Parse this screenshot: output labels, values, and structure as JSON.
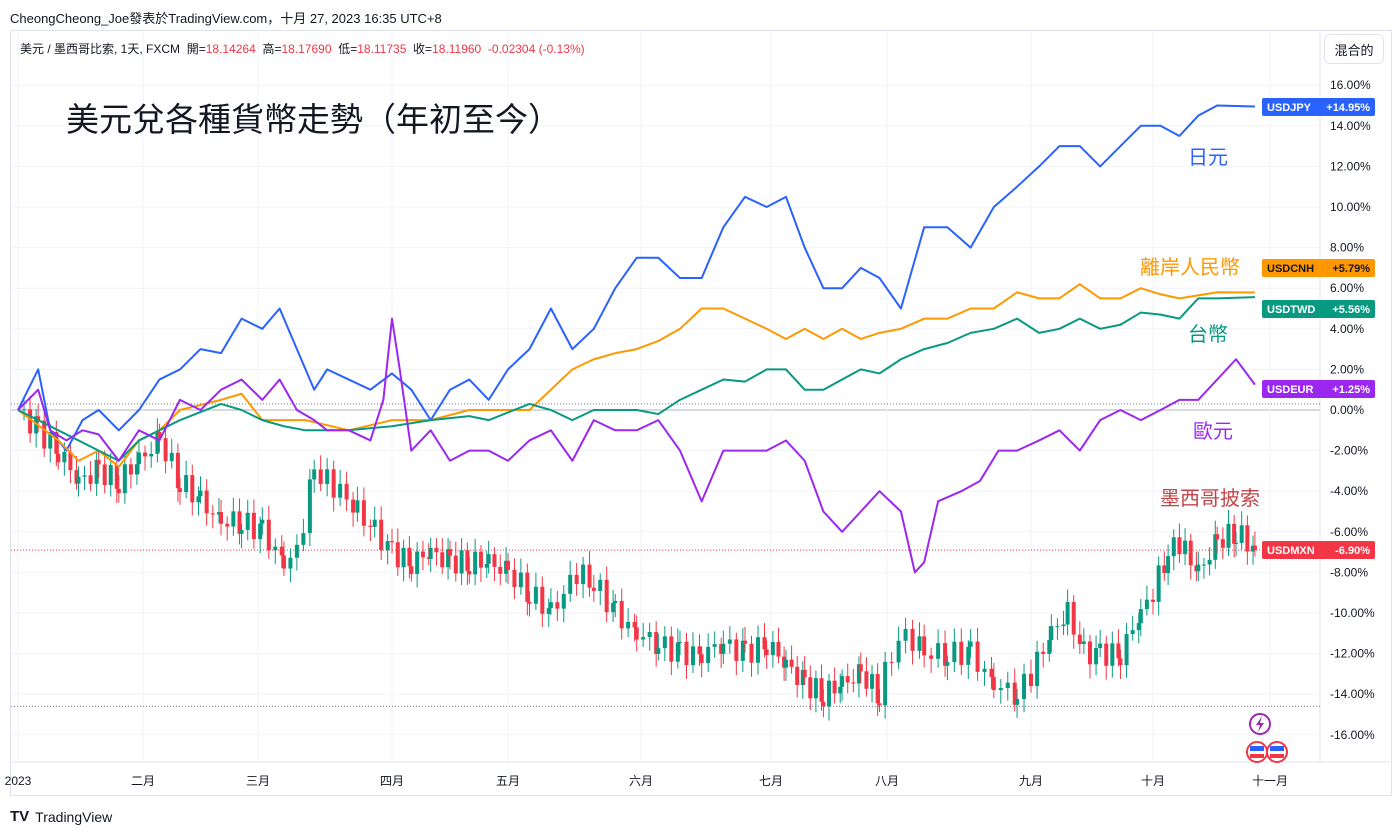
{
  "header": {
    "published": "CheongCheong_Joe發表於TradingView.com，十月 27, 2023 16:35 UTC+8"
  },
  "legend": {
    "symbol": "美元 / 墨西哥比索, 1天, FXCM",
    "open_label": "開=",
    "open": "18.14264",
    "high_label": "高=",
    "high": "18.17690",
    "low_label": "低=",
    "low": "18.11735",
    "close_label": "收=",
    "close": "18.11960",
    "change": "-0.02304 (-0.13%)"
  },
  "scale_button": "混合的",
  "footer": {
    "brand": "TradingView"
  },
  "chart_data": {
    "type": "line",
    "title": "美元兌各種貨幣走勢（年初至今）",
    "ylabel": "%",
    "ylim": [
      -17,
      17
    ],
    "yticks": [
      16,
      14,
      12,
      10,
      8,
      6,
      4,
      2,
      0,
      -2,
      -4,
      -6,
      -8,
      -10,
      -12,
      -14,
      -16
    ],
    "ytick_labels": [
      "16.00%",
      "14.00%",
      "12.00%",
      "10.00%",
      "8.00%",
      "6.00%",
      "4.00%",
      "2.00%",
      "0.00%",
      "-2.00%",
      "-4.00%",
      "-6.00%",
      "-8.00%",
      "-10.00%",
      "-12.00%",
      "-14.00%",
      "-16.00%"
    ],
    "xticks": [
      {
        "day": 0,
        "label": "2023"
      },
      {
        "day": 31,
        "label": "二月"
      },
      {
        "day": 59,
        "label": "三月"
      },
      {
        "day": 90,
        "label": "四月"
      },
      {
        "day": 120,
        "label": "五月"
      },
      {
        "day": 151,
        "label": "六月"
      },
      {
        "day": 181,
        "label": "七月"
      },
      {
        "day": 212,
        "label": "八月"
      },
      {
        "day": 243,
        "label": "九月"
      },
      {
        "day": 273,
        "label": "十月"
      },
      {
        "day": 304,
        "label": "十一月"
      }
    ],
    "grid": true,
    "reference_lines": [
      0.3,
      -14.6
    ],
    "series": [
      {
        "name": "USDJPY",
        "value_label": "+14.95%",
        "annotation": "日元",
        "color": "#2962ff",
        "points": [
          [
            0,
            0
          ],
          [
            5,
            2
          ],
          [
            8,
            -1
          ],
          [
            12,
            -2
          ],
          [
            16,
            -0.5
          ],
          [
            20,
            0
          ],
          [
            25,
            -1
          ],
          [
            30,
            0
          ],
          [
            35,
            1.5
          ],
          [
            40,
            2
          ],
          [
            45,
            3
          ],
          [
            50,
            2.8
          ],
          [
            55,
            4.5
          ],
          [
            60,
            4
          ],
          [
            64,
            5
          ],
          [
            68,
            3
          ],
          [
            72,
            1
          ],
          [
            75,
            2
          ],
          [
            80,
            1.5
          ],
          [
            85,
            1
          ],
          [
            90,
            1.8
          ],
          [
            95,
            1
          ],
          [
            100,
            -0.5
          ],
          [
            105,
            1
          ],
          [
            110,
            1.5
          ],
          [
            115,
            0.5
          ],
          [
            120,
            2
          ],
          [
            125,
            3
          ],
          [
            130,
            5
          ],
          [
            135,
            3
          ],
          [
            140,
            4
          ],
          [
            145,
            6
          ],
          [
            150,
            7.5
          ],
          [
            155,
            7.5
          ],
          [
            160,
            6.5
          ],
          [
            165,
            6.5
          ],
          [
            170,
            9
          ],
          [
            175,
            10.5
          ],
          [
            180,
            10
          ],
          [
            185,
            10.5
          ],
          [
            190,
            8
          ],
          [
            195,
            6
          ],
          [
            200,
            6
          ],
          [
            205,
            7
          ],
          [
            210,
            6.5
          ],
          [
            215,
            5
          ],
          [
            220,
            9
          ],
          [
            225,
            9
          ],
          [
            230,
            8
          ],
          [
            235,
            10
          ],
          [
            240,
            11
          ],
          [
            245,
            12
          ],
          [
            250,
            13
          ],
          [
            255,
            13
          ],
          [
            260,
            12
          ],
          [
            265,
            13
          ],
          [
            270,
            14
          ],
          [
            275,
            14
          ],
          [
            280,
            13.5
          ],
          [
            285,
            14.5
          ],
          [
            290,
            15
          ],
          [
            300,
            14.95
          ]
        ]
      },
      {
        "name": "USDCNH",
        "value_label": "+5.79%",
        "annotation": "離岸人民幣",
        "color": "#ff9800",
        "points": [
          [
            0,
            0
          ],
          [
            10,
            -1.5
          ],
          [
            15,
            -2.5
          ],
          [
            20,
            -2
          ],
          [
            25,
            -2.8
          ],
          [
            30,
            -1.5
          ],
          [
            35,
            -1
          ],
          [
            40,
            0
          ],
          [
            50,
            0.5
          ],
          [
            55,
            0.8
          ],
          [
            60,
            -0.5
          ],
          [
            70,
            -0.5
          ],
          [
            80,
            -1
          ],
          [
            90,
            -0.5
          ],
          [
            100,
            -0.5
          ],
          [
            110,
            0
          ],
          [
            115,
            0
          ],
          [
            125,
            0
          ],
          [
            130,
            1
          ],
          [
            135,
            2
          ],
          [
            140,
            2.5
          ],
          [
            145,
            2.8
          ],
          [
            150,
            3
          ],
          [
            155,
            3.4
          ],
          [
            160,
            4
          ],
          [
            165,
            5
          ],
          [
            170,
            5
          ],
          [
            175,
            4.5
          ],
          [
            180,
            4
          ],
          [
            185,
            3.5
          ],
          [
            190,
            4
          ],
          [
            195,
            3.5
          ],
          [
            200,
            4
          ],
          [
            205,
            3.5
          ],
          [
            210,
            3.8
          ],
          [
            215,
            4
          ],
          [
            220,
            4.5
          ],
          [
            225,
            4.5
          ],
          [
            230,
            5
          ],
          [
            235,
            5
          ],
          [
            240,
            5.8
          ],
          [
            245,
            5.5
          ],
          [
            250,
            5.5
          ],
          [
            255,
            6.2
          ],
          [
            260,
            5.5
          ],
          [
            265,
            5.5
          ],
          [
            270,
            6
          ],
          [
            275,
            5.7
          ],
          [
            280,
            5.5
          ],
          [
            290,
            5.8
          ],
          [
            300,
            5.79
          ]
        ]
      },
      {
        "name": "USDTWD",
        "value_label": "+5.56%",
        "annotation": "台幣",
        "color": "#089981",
        "points": [
          [
            0,
            0
          ],
          [
            10,
            -1
          ],
          [
            15,
            -1.5
          ],
          [
            20,
            -2
          ],
          [
            25,
            -2.5
          ],
          [
            30,
            -1.5
          ],
          [
            35,
            -1
          ],
          [
            40,
            -0.5
          ],
          [
            50,
            0.3
          ],
          [
            55,
            0
          ],
          [
            60,
            -0.5
          ],
          [
            65,
            -0.8
          ],
          [
            70,
            -1
          ],
          [
            80,
            -1
          ],
          [
            90,
            -0.8
          ],
          [
            100,
            -0.5
          ],
          [
            110,
            -0.3
          ],
          [
            115,
            -0.5
          ],
          [
            125,
            0.3
          ],
          [
            130,
            0
          ],
          [
            135,
            -0.5
          ],
          [
            140,
            0
          ],
          [
            145,
            0
          ],
          [
            150,
            0
          ],
          [
            155,
            -0.2
          ],
          [
            160,
            0.5
          ],
          [
            165,
            1
          ],
          [
            170,
            1.5
          ],
          [
            175,
            1.4
          ],
          [
            180,
            2
          ],
          [
            185,
            2
          ],
          [
            190,
            1
          ],
          [
            195,
            1
          ],
          [
            200,
            1.5
          ],
          [
            205,
            2
          ],
          [
            210,
            1.8
          ],
          [
            215,
            2.5
          ],
          [
            220,
            3
          ],
          [
            225,
            3.3
          ],
          [
            230,
            3.8
          ],
          [
            235,
            4
          ],
          [
            240,
            4.5
          ],
          [
            245,
            3.8
          ],
          [
            250,
            4
          ],
          [
            255,
            4.5
          ],
          [
            260,
            4
          ],
          [
            265,
            4.2
          ],
          [
            270,
            4.8
          ],
          [
            275,
            4.7
          ],
          [
            280,
            4.5
          ],
          [
            285,
            5.5
          ],
          [
            290,
            5.5
          ],
          [
            300,
            5.56
          ]
        ]
      },
      {
        "name": "USDEUR",
        "value_label": "+1.25%",
        "annotation": "歐元",
        "color": "#9c27f0",
        "points": [
          [
            0,
            0
          ],
          [
            5,
            1
          ],
          [
            8,
            -1
          ],
          [
            12,
            -1.5
          ],
          [
            16,
            -1
          ],
          [
            20,
            -1.2
          ],
          [
            25,
            -2.5
          ],
          [
            30,
            -1
          ],
          [
            35,
            -1.5
          ],
          [
            40,
            0.5
          ],
          [
            45,
            0
          ],
          [
            50,
            1
          ],
          [
            55,
            1.5
          ],
          [
            60,
            0.5
          ],
          [
            64,
            1.5
          ],
          [
            68,
            0
          ],
          [
            72,
            -0.5
          ],
          [
            75,
            -1
          ],
          [
            80,
            -1
          ],
          [
            85,
            -1.5
          ],
          [
            88,
            0.5
          ],
          [
            90,
            4.5
          ],
          [
            92,
            2
          ],
          [
            95,
            -2
          ],
          [
            100,
            -1
          ],
          [
            105,
            -2.5
          ],
          [
            110,
            -2
          ],
          [
            115,
            -2
          ],
          [
            120,
            -2.5
          ],
          [
            125,
            -1.5
          ],
          [
            130,
            -1
          ],
          [
            135,
            -2.5
          ],
          [
            140,
            -0.5
          ],
          [
            145,
            -1
          ],
          [
            150,
            -1
          ],
          [
            155,
            -0.5
          ],
          [
            160,
            -2
          ],
          [
            165,
            -4.5
          ],
          [
            170,
            -2
          ],
          [
            175,
            -2
          ],
          [
            180,
            -2
          ],
          [
            185,
            -1.5
          ],
          [
            190,
            -2.5
          ],
          [
            195,
            -5
          ],
          [
            200,
            -6
          ],
          [
            205,
            -5
          ],
          [
            210,
            -4
          ],
          [
            215,
            -5
          ],
          [
            218,
            -8
          ],
          [
            220,
            -7.5
          ],
          [
            223,
            -4.5
          ],
          [
            228,
            -4
          ],
          [
            232,
            -3.5
          ],
          [
            236,
            -2
          ],
          [
            240,
            -2
          ],
          [
            245,
            -1.5
          ],
          [
            250,
            -1
          ],
          [
            255,
            -2
          ],
          [
            260,
            -0.5
          ],
          [
            265,
            0
          ],
          [
            270,
            -0.5
          ],
          [
            275,
            0
          ],
          [
            280,
            0.5
          ],
          [
            285,
            0.5
          ],
          [
            290,
            1.5
          ],
          [
            295,
            2.5
          ],
          [
            300,
            1.25
          ]
        ]
      }
    ],
    "candles": {
      "name": "USDMXN",
      "value_label": "-6.90%",
      "annotation": "墨西哥披索",
      "up_color": "#089981",
      "down_color": "#f23645",
      "closes": [
        [
          0,
          0
        ],
        [
          5,
          -1
        ],
        [
          10,
          -2
        ],
        [
          15,
          -3.5
        ],
        [
          20,
          -3
        ],
        [
          25,
          -3.5
        ],
        [
          30,
          -2.5
        ],
        [
          35,
          -1.5
        ],
        [
          40,
          -3.5
        ],
        [
          45,
          -4.5
        ],
        [
          50,
          -5.5
        ],
        [
          55,
          -5.5
        ],
        [
          60,
          -6
        ],
        [
          65,
          -7.5
        ],
        [
          68,
          -7
        ],
        [
          72,
          -3
        ],
        [
          75,
          -3.5
        ],
        [
          78,
          -4
        ],
        [
          82,
          -5
        ],
        [
          86,
          -6
        ],
        [
          90,
          -7
        ],
        [
          95,
          -7.5
        ],
        [
          100,
          -7
        ],
        [
          105,
          -7.5
        ],
        [
          110,
          -7.5
        ],
        [
          115,
          -7.5
        ],
        [
          120,
          -8
        ],
        [
          125,
          -9
        ],
        [
          130,
          -10
        ],
        [
          133,
          -9
        ],
        [
          136,
          -8
        ],
        [
          140,
          -8.5
        ],
        [
          145,
          -10
        ],
        [
          150,
          -11
        ],
        [
          155,
          -11.5
        ],
        [
          160,
          -12
        ],
        [
          165,
          -12
        ],
        [
          170,
          -11.5
        ],
        [
          175,
          -12
        ],
        [
          180,
          -11.5
        ],
        [
          185,
          -12.5
        ],
        [
          190,
          -13.5
        ],
        [
          195,
          -14
        ],
        [
          200,
          -13.5
        ],
        [
          205,
          -13
        ],
        [
          210,
          -14
        ],
        [
          213,
          -12
        ],
        [
          216,
          -11
        ],
        [
          220,
          -12
        ],
        [
          225,
          -12
        ],
        [
          230,
          -12
        ],
        [
          235,
          -13.5
        ],
        [
          240,
          -14
        ],
        [
          243,
          -13
        ],
        [
          248,
          -11
        ],
        [
          252,
          -10
        ],
        [
          256,
          -12
        ],
        [
          260,
          -12
        ],
        [
          265,
          -12
        ],
        [
          270,
          -10
        ],
        [
          273,
          -9
        ],
        [
          277,
          -7
        ],
        [
          280,
          -6.5
        ],
        [
          285,
          -8
        ],
        [
          290,
          -6.5
        ],
        [
          295,
          -6
        ],
        [
          300,
          -6.9
        ]
      ]
    }
  }
}
